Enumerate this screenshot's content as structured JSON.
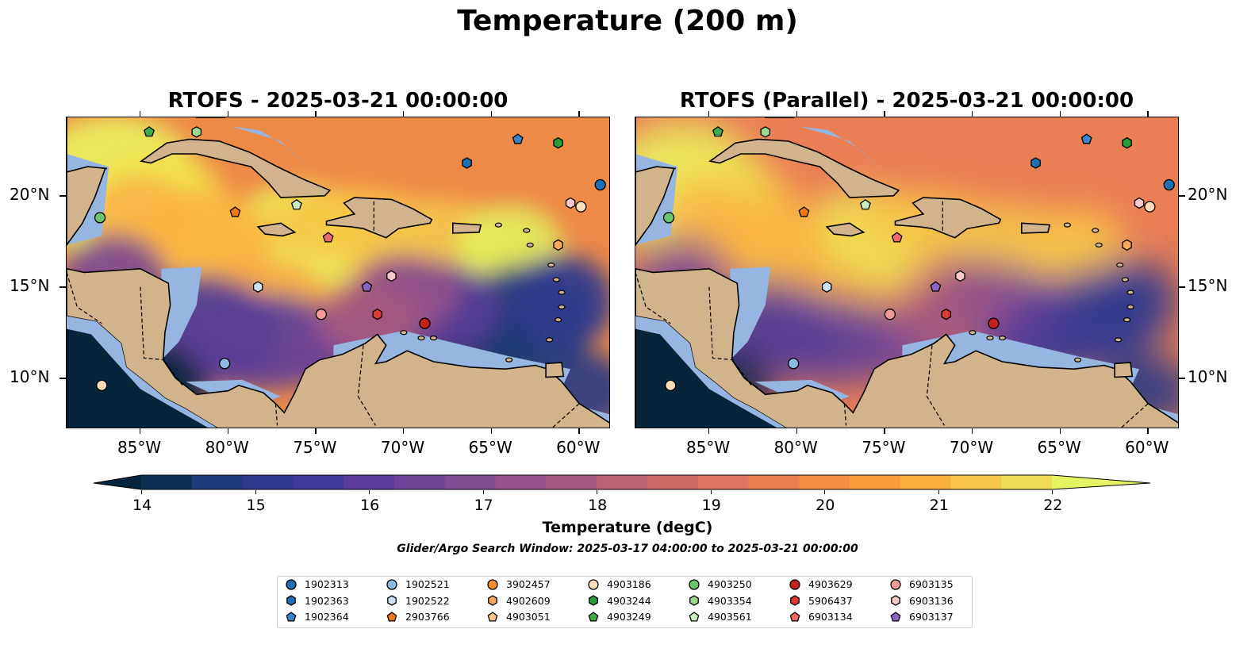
{
  "suptitle": "Temperature (200 m)",
  "panels": [
    {
      "title": "RTOFS - 2025-03-21 00:00:00"
    },
    {
      "title": "RTOFS (Parallel) - 2025-03-21 00:00:00"
    }
  ],
  "lon_ticks": [
    "85°W",
    "80°W",
    "75°W",
    "70°W",
    "65°W",
    "60°W"
  ],
  "lat_ticks": [
    "20°N",
    "15°N",
    "10°N"
  ],
  "colorbar": {
    "label": "Temperature (degC)",
    "ticks": [
      "14",
      "15",
      "16",
      "17",
      "18",
      "19",
      "20",
      "21",
      "22"
    ],
    "colors": [
      "#06253a",
      "#0a2f55",
      "#1d3a7a",
      "#2f3a8f",
      "#423a9a",
      "#5a3d9b",
      "#6d4496",
      "#804b8f",
      "#935288",
      "#a75a80",
      "#bb6275",
      "#cd6a68",
      "#dc7460",
      "#ea8050",
      "#f58e43",
      "#f99e3a",
      "#fbb03d",
      "#f8c74a",
      "#eedc52",
      "#e4f462"
    ]
  },
  "search_window": "Glider/Argo Search Window: 2025-03-17 04:00:00 to 2025-03-21 00:00:00",
  "legend": [
    {
      "id": "1902313",
      "marker": "circle",
      "color": "#1f6fb2"
    },
    {
      "id": "1902363",
      "marker": "hexagon",
      "color": "#1f6fb2"
    },
    {
      "id": "1902364",
      "marker": "pentagon",
      "color": "#3a84c9"
    },
    {
      "id": "1902521",
      "marker": "circle",
      "color": "#8fb9df"
    },
    {
      "id": "1902522",
      "marker": "hexagon",
      "color": "#cde0f2"
    },
    {
      "id": "2903766",
      "marker": "pentagon",
      "color": "#ee7a16"
    },
    {
      "id": "3902457",
      "marker": "circle",
      "color": "#f58d2c"
    },
    {
      "id": "4902609",
      "marker": "hexagon",
      "color": "#f8a75c"
    },
    {
      "id": "4903051",
      "marker": "pentagon",
      "color": "#f9c48b"
    },
    {
      "id": "4903186",
      "marker": "circle",
      "color": "#fbdcb8"
    },
    {
      "id": "4903244",
      "marker": "hexagon",
      "color": "#2a9b3a"
    },
    {
      "id": "4903249",
      "marker": "pentagon",
      "color": "#43aa4c"
    },
    {
      "id": "4903250",
      "marker": "circle",
      "color": "#6cc46a"
    },
    {
      "id": "4903354",
      "marker": "hexagon",
      "color": "#9dd98f"
    },
    {
      "id": "4903561",
      "marker": "pentagon",
      "color": "#c9edbd"
    },
    {
      "id": "4903629",
      "marker": "circle",
      "color": "#c42020"
    },
    {
      "id": "5906437",
      "marker": "hexagon",
      "color": "#de3a35"
    },
    {
      "id": "6903134",
      "marker": "pentagon",
      "color": "#ee6a6a"
    },
    {
      "id": "6903135",
      "marker": "circle",
      "color": "#f29a9a"
    },
    {
      "id": "6903136",
      "marker": "hexagon",
      "color": "#f9c8c8"
    },
    {
      "id": "6903137",
      "marker": "pentagon",
      "color": "#8a63c2"
    }
  ],
  "floats": [
    {
      "lon": -84.5,
      "lat": 23.5,
      "ref": "4903249"
    },
    {
      "lon": -81.8,
      "lat": 23.5,
      "ref": "4903354"
    },
    {
      "lon": -66.4,
      "lat": 21.8,
      "ref": "1902363"
    },
    {
      "lon": -63.5,
      "lat": 23.1,
      "ref": "1902364"
    },
    {
      "lon": -61.2,
      "lat": 22.9,
      "ref": "4903244"
    },
    {
      "lon": -58.8,
      "lat": 20.6,
      "ref": "1902313"
    },
    {
      "lon": -60.5,
      "lat": 19.6,
      "ref": "6903136"
    },
    {
      "lon": -59.9,
      "lat": 19.4,
      "ref": "4903186"
    },
    {
      "lon": -61.2,
      "lat": 17.3,
      "ref": "4902609"
    },
    {
      "lon": -87.3,
      "lat": 18.8,
      "ref": "4903250"
    },
    {
      "lon": -79.6,
      "lat": 19.1,
      "ref": "2903766"
    },
    {
      "lon": -76.1,
      "lat": 19.5,
      "ref": "4903561"
    },
    {
      "lon": -74.3,
      "lat": 17.7,
      "ref": "6903134"
    },
    {
      "lon": -70.7,
      "lat": 15.6,
      "ref": "6903136"
    },
    {
      "lon": -72.1,
      "lat": 15.0,
      "ref": "6903137"
    },
    {
      "lon": -78.3,
      "lat": 15.0,
      "ref": "1902522"
    },
    {
      "lon": -74.7,
      "lat": 13.5,
      "ref": "6903135"
    },
    {
      "lon": -71.5,
      "lat": 13.5,
      "ref": "5906437"
    },
    {
      "lon": -68.8,
      "lat": 13.0,
      "ref": "4903629"
    },
    {
      "lon": -80.2,
      "lat": 10.8,
      "ref": "1902521"
    },
    {
      "lon": -87.2,
      "lat": 9.6,
      "ref": "4903186"
    }
  ]
}
